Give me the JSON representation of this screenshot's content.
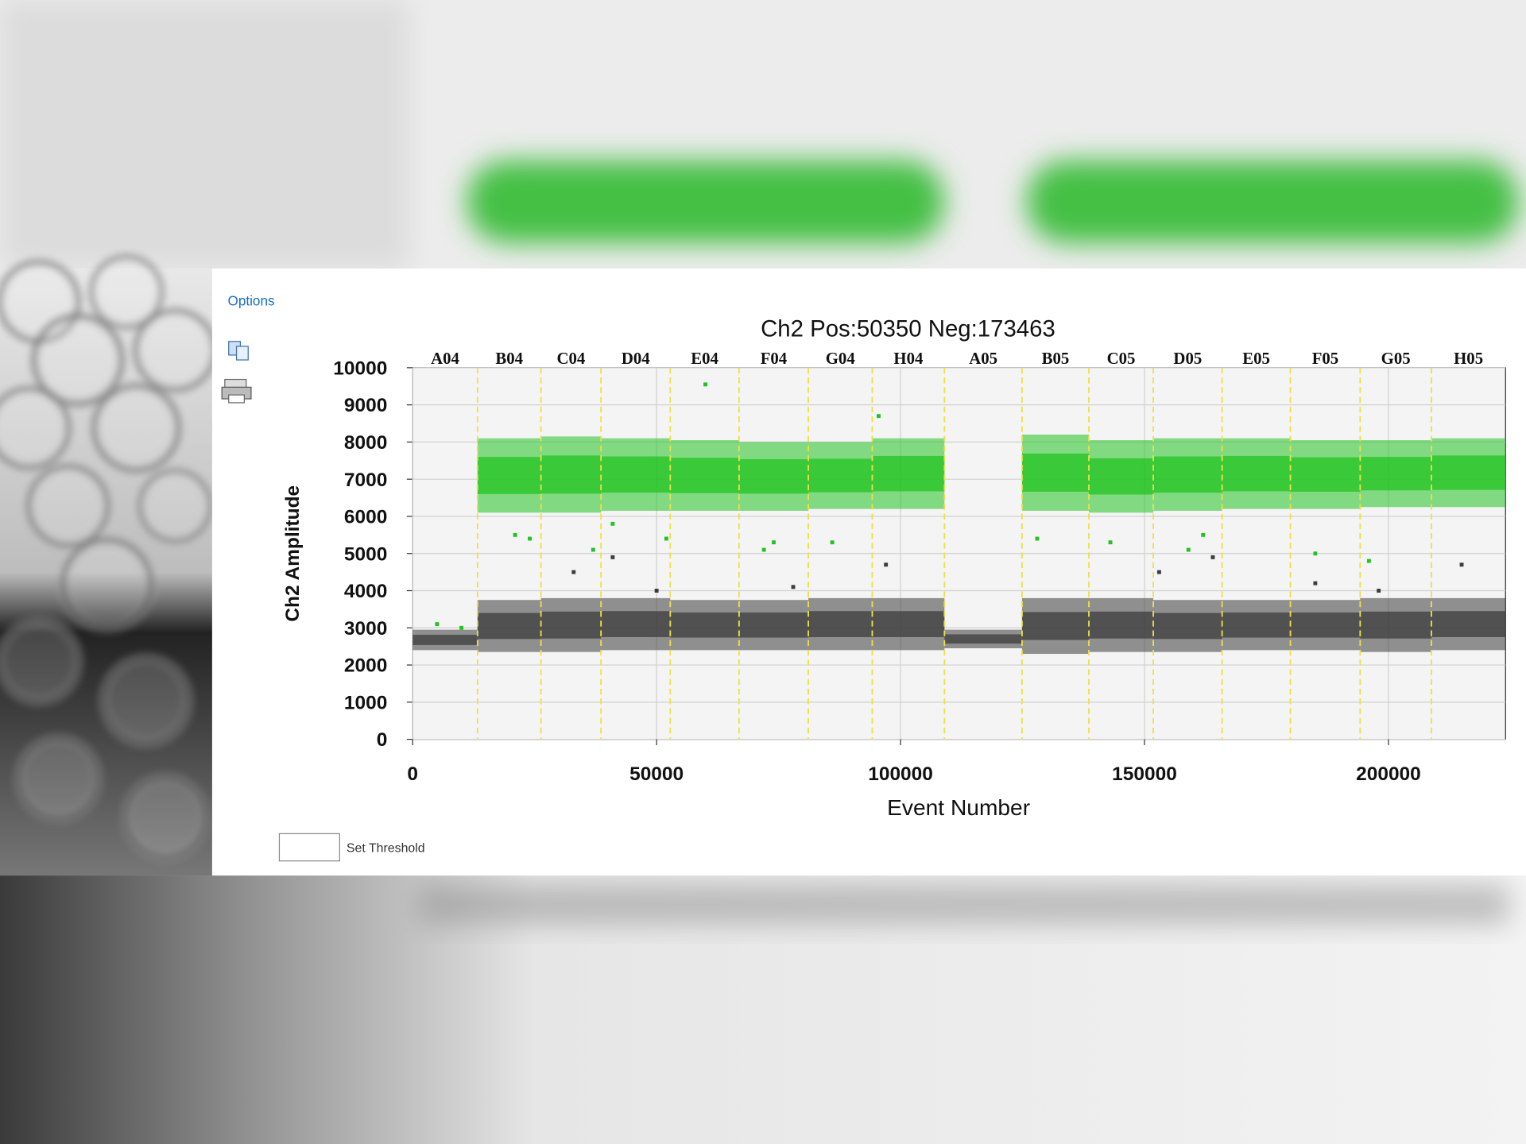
{
  "options_link": "Options",
  "threshold_label": "Set Threshold",
  "chart_data": {
    "type": "well-scatter",
    "title": "Ch2 Pos:50350 Neg:173463",
    "x_label": "Event Number",
    "y_label": "Ch2 Amplitude",
    "xlim": [
      0,
      224000
    ],
    "ylim": [
      0,
      10000
    ],
    "xticks": [
      0,
      50000,
      100000,
      150000,
      200000
    ],
    "yticks": [
      0,
      1000,
      2000,
      3000,
      4000,
      5000,
      6000,
      7000,
      8000,
      9000,
      10000
    ],
    "grid": true,
    "wells": [
      "A04",
      "B04",
      "C04",
      "D04",
      "E04",
      "F04",
      "G04",
      "H04",
      "A05",
      "B05",
      "C05",
      "D05",
      "E05",
      "F05",
      "G05",
      "H05"
    ],
    "well_boundaries": [
      13300,
      26300,
      38600,
      52800,
      66900,
      81100,
      94200,
      109000,
      124900,
      138600,
      151800,
      165900,
      179900,
      194200,
      208800
    ],
    "positive_color": "#22c322",
    "negative_color": "#3c3c3c",
    "boundary_color": "#f0e040",
    "positive_low": [
      null,
      6100,
      6100,
      6150,
      6150,
      6150,
      6200,
      6200,
      null,
      6150,
      6100,
      6150,
      6200,
      6200,
      6250,
      6250
    ],
    "positive_high": [
      null,
      8100,
      8150,
      8100,
      8050,
      8000,
      8000,
      8100,
      null,
      8200,
      8050,
      8100,
      8100,
      8050,
      8050,
      8100
    ],
    "negative_low": [
      2400,
      2350,
      2350,
      2400,
      2400,
      2400,
      2400,
      2400,
      2450,
      2300,
      2350,
      2350,
      2400,
      2400,
      2350,
      2400
    ],
    "negative_high": [
      2950,
      3750,
      3800,
      3800,
      3750,
      3750,
      3800,
      3800,
      2950,
      3800,
      3800,
      3750,
      3750,
      3750,
      3800,
      3800
    ],
    "positive_points": {
      "x": [
        5000,
        10000,
        60000,
        95500,
        21000,
        24000,
        37000,
        41000,
        52000,
        72000,
        74000,
        86000,
        128000,
        143000,
        159000,
        162000,
        185000,
        196000
      ],
      "y": [
        3100,
        3000,
        9550,
        8700,
        5500,
        5400,
        5100,
        5800,
        5400,
        5100,
        5300,
        5300,
        5400,
        5300,
        5100,
        5500,
        5000,
        4800
      ]
    },
    "negative_points": {
      "x": [
        33000,
        41000,
        50000,
        78000,
        97000,
        153000,
        164000,
        185000,
        215000,
        198000
      ],
      "y": [
        4500,
        4900,
        4000,
        4100,
        4700,
        4500,
        4900,
        4200,
        4700,
        4000
      ]
    }
  }
}
